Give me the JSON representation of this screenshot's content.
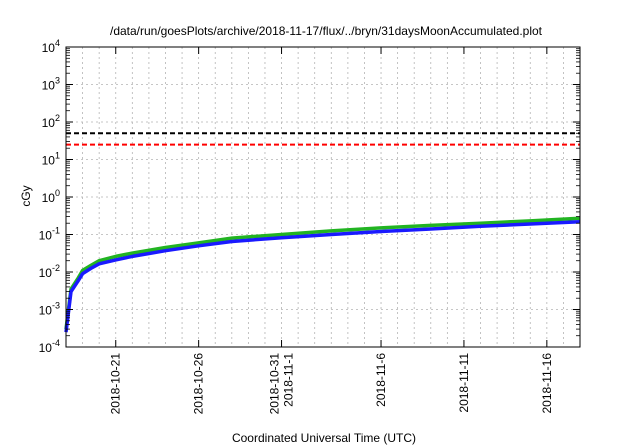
{
  "chart_data": {
    "type": "line",
    "title": "/data/run/goesPlots/archive/2018-11-17/flux/../bryn/31daysMoonAccumulated.plot",
    "xlabel": "Coordinated Universal Time (UTC)",
    "ylabel": "cGy",
    "yscale": "log",
    "xlim": [
      "2018-10-18",
      "2018-11-18"
    ],
    "ylim": [
      0.0001,
      10000
    ],
    "grid": true,
    "y_ticks": [
      {
        "base": "10",
        "exp": "-4"
      },
      {
        "base": "10",
        "exp": "-3"
      },
      {
        "base": "10",
        "exp": "-2"
      },
      {
        "base": "10",
        "exp": "-1"
      },
      {
        "base": "10",
        "exp": "0"
      },
      {
        "base": "10",
        "exp": "1"
      },
      {
        "base": "10",
        "exp": "2"
      },
      {
        "base": "10",
        "exp": "3"
      },
      {
        "base": "10",
        "exp": "4"
      }
    ],
    "x_ticks": [
      {
        "date": "2018-10-21",
        "lines": [
          "2018-10-21"
        ]
      },
      {
        "date": "2018-10-26",
        "lines": [
          "2018-10-26"
        ]
      },
      {
        "date": "2018-10-31",
        "lines": [
          "2018-10-31",
          "2018-11-1"
        ]
      },
      {
        "date": "2018-11-06",
        "lines": [
          "2018-11-6"
        ]
      },
      {
        "date": "2018-11-11",
        "lines": [
          "2018-11-11"
        ]
      },
      {
        "date": "2018-11-16",
        "lines": [
          "2018-11-16"
        ]
      }
    ],
    "thresholds": [
      {
        "value": 50,
        "color": "#000000",
        "style": "dashed"
      },
      {
        "value": 25,
        "color": "#ff0000",
        "style": "dashed"
      }
    ],
    "series": [
      {
        "color": "#22b422",
        "x": [
          "2018-10-18",
          "2018-10-18.3",
          "2018-10-18.7",
          "2018-10-19",
          "2018-10-19.5",
          "2018-10-20",
          "2018-10-21",
          "2018-10-22",
          "2018-10-24",
          "2018-10-26",
          "2018-10-28",
          "2018-10-31",
          "2018-11-03",
          "2018-11-06",
          "2018-11-09",
          "2018-11-12",
          "2018-11-15",
          "2018-11-18"
        ],
        "y": [
          0.0003,
          0.0035,
          0.0065,
          0.011,
          0.015,
          0.02,
          0.026,
          0.032,
          0.045,
          0.06,
          0.08,
          0.1,
          0.125,
          0.15,
          0.175,
          0.2,
          0.23,
          0.27
        ]
      },
      {
        "color": "#1a1aff",
        "x": [
          "2018-10-18",
          "2018-10-18.3",
          "2018-10-18.7",
          "2018-10-19",
          "2018-10-19.5",
          "2018-10-20",
          "2018-10-21",
          "2018-10-22",
          "2018-10-24",
          "2018-10-26",
          "2018-10-28",
          "2018-10-31",
          "2018-11-03",
          "2018-11-06",
          "2018-11-09",
          "2018-11-12",
          "2018-11-15",
          "2018-11-18"
        ],
        "y": [
          0.00025,
          0.003,
          0.0055,
          0.009,
          0.0125,
          0.0165,
          0.021,
          0.026,
          0.037,
          0.05,
          0.065,
          0.082,
          0.1,
          0.12,
          0.14,
          0.165,
          0.19,
          0.22
        ]
      }
    ]
  }
}
